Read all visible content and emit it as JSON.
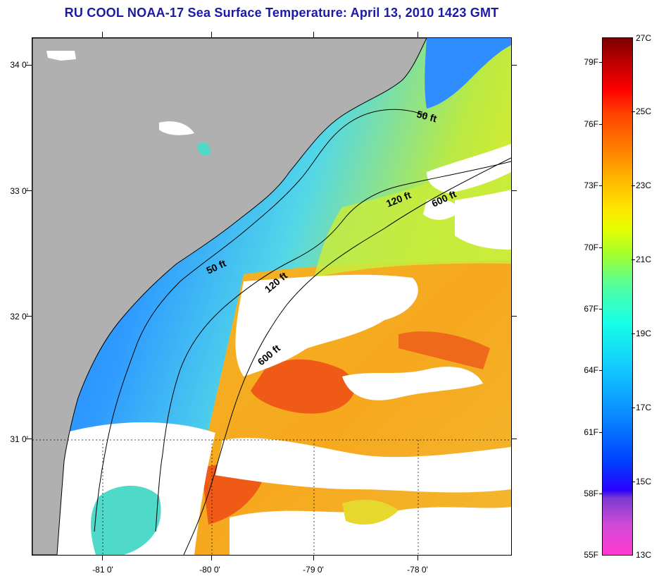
{
  "title": "RU COOL  NOAA-17  Sea Surface Temperature:  April 13, 2010 1423 GMT",
  "latitude_labels": [
    "34 0'",
    "33 0'",
    "32 0'",
    "31 0'"
  ],
  "longitude_labels": [
    "-81 0'",
    "-80 0'",
    "-79 0'",
    "-78 0'"
  ],
  "contour_labels": {
    "c50_north": "50 ft",
    "c50_south": "50 ft",
    "c120_north": "120 ft",
    "c120_south": "120 ft",
    "c600_north": "600 ft",
    "c600_south": "600 ft"
  },
  "colorbar": {
    "fahrenheit_labels": [
      "79F",
      "76F",
      "73F",
      "70F",
      "67F",
      "64F",
      "61F",
      "58F",
      "55F"
    ],
    "celsius_labels": [
      "27C",
      "25C",
      "23C",
      "21C",
      "19C",
      "17C",
      "15C",
      "13C"
    ]
  },
  "colors": {
    "land": "#b0b0b0",
    "cloud": "#ffffff",
    "nearshore_blue": "#2f8dff",
    "mid_shelf_cyan": "#4fd9e6",
    "outer_shelf_green": "#c6ec3a",
    "gulf_stream_orange": "#f7a21a",
    "warm_core_red_orange": "#ef5a16",
    "title_blue": "#1a1aa6"
  }
}
